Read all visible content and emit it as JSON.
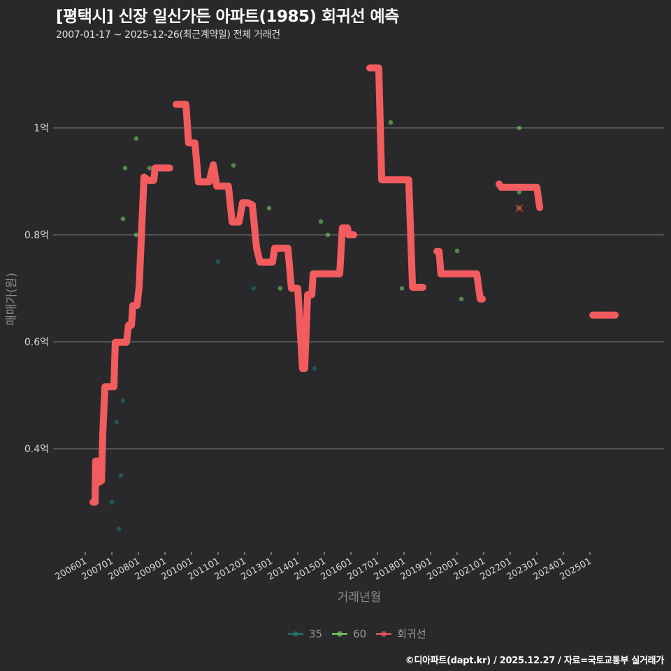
{
  "header": {
    "title": "[평택시] 신장 일신가든 아파트(1985) 회귀선 예측",
    "subtitle": "2007-01-17 ~ 2025-12-26(최근계약일) 전체 거래건"
  },
  "footer": {
    "credit": "©디아파트(dapt.kr) / 2025.12.27 / 자료=국토교통부 실거래가"
  },
  "legend": [
    {
      "label": "35",
      "color": "#1f7a72"
    },
    {
      "label": "60",
      "color": "#7bd36a"
    },
    {
      "label": "회귀선",
      "color": "#f25c5f"
    }
  ],
  "chart_data": {
    "type": "line",
    "title": "[평택시] 신장 일신가든 아파트(1985) 회귀선 예측",
    "subtitle": "2007-01-17 ~ 2025-12-26(최근계약일) 전체 거래건",
    "xlabel": "거래년월",
    "ylabel": "매매가(원)",
    "x_ticks": [
      "200601",
      "200701",
      "200801",
      "200901",
      "201001",
      "201101",
      "201201",
      "201301",
      "201401",
      "201501",
      "201601",
      "201701",
      "201801",
      "201901",
      "202001",
      "202101",
      "202201",
      "202301",
      "202401",
      "202501"
    ],
    "y_ticks": [
      {
        "value": 0.4,
        "label": "0.4억"
      },
      {
        "value": 0.6,
        "label": "0.6억"
      },
      {
        "value": 0.8,
        "label": "0.8억"
      },
      {
        "value": 1.0,
        "label": "1억"
      }
    ],
    "ylim": [
      0.21,
      1.13
    ],
    "xlim": [
      2005.6,
      2026.3
    ],
    "grid": "horizontal",
    "legend_position": "bottom",
    "unit": "억원",
    "series": [
      {
        "name": "35",
        "kind": "scatter",
        "color": "#1f7a72",
        "points": [
          {
            "x": 2007.42,
            "y": 0.49
          },
          {
            "x": 2007.18,
            "y": 0.45
          },
          {
            "x": 2007.34,
            "y": 0.35
          },
          {
            "x": 2007.0,
            "y": 0.3
          },
          {
            "x": 2007.26,
            "y": 0.25
          },
          {
            "x": 2011.0,
            "y": 0.75
          },
          {
            "x": 2012.34,
            "y": 0.7
          },
          {
            "x": 2014.63,
            "y": 0.55
          }
        ]
      },
      {
        "name": "60",
        "kind": "scatter",
        "color": "#7bd36a",
        "points": [
          {
            "x": 2007.92,
            "y": 0.98
          },
          {
            "x": 2007.5,
            "y": 0.925
          },
          {
            "x": 2008.42,
            "y": 0.925
          },
          {
            "x": 2007.42,
            "y": 0.83
          },
          {
            "x": 2007.92,
            "y": 0.8
          },
          {
            "x": 2011.58,
            "y": 0.93
          },
          {
            "x": 2012.92,
            "y": 0.85
          },
          {
            "x": 2013.34,
            "y": 0.7
          },
          {
            "x": 2014.87,
            "y": 0.825
          },
          {
            "x": 2015.13,
            "y": 0.8
          },
          {
            "x": 2017.5,
            "y": 1.01
          },
          {
            "x": 2017.92,
            "y": 0.7
          },
          {
            "x": 2020.0,
            "y": 0.77
          },
          {
            "x": 2020.16,
            "y": 0.68
          },
          {
            "x": 2022.34,
            "y": 1.0
          },
          {
            "x": 2022.34,
            "y": 0.88
          },
          {
            "x": 2022.34,
            "y": 0.85,
            "cancelled": true
          }
        ]
      },
      {
        "name": "회귀선",
        "kind": "line",
        "color": "#f25c5f",
        "segments": [
          [
            [
              2006.29,
              0.3
            ],
            [
              2006.37,
              0.3
            ],
            [
              2006.39,
              0.377
            ],
            [
              2006.5,
              0.377
            ],
            [
              2006.5,
              0.337
            ],
            [
              2006.61,
              0.34
            ],
            [
              2006.66,
              0.429
            ],
            [
              2006.74,
              0.516
            ],
            [
              2007.08,
              0.516
            ],
            [
              2007.13,
              0.599
            ],
            [
              2007.55,
              0.599
            ],
            [
              2007.63,
              0.631
            ],
            [
              2007.74,
              0.631
            ],
            [
              2007.79,
              0.668
            ],
            [
              2007.95,
              0.668
            ],
            [
              2008.03,
              0.703
            ],
            [
              2008.21,
              0.908
            ],
            [
              2008.39,
              0.902
            ],
            [
              2008.58,
              0.902
            ],
            [
              2008.63,
              0.925
            ],
            [
              2009.18,
              0.925
            ]
          ],
          [
            [
              2009.42,
              1.044
            ],
            [
              2009.79,
              1.044
            ],
            [
              2009.89,
              0.972
            ],
            [
              2010.13,
              0.972
            ],
            [
              2010.26,
              0.899
            ],
            [
              2010.66,
              0.899
            ],
            [
              2010.82,
              0.931
            ],
            [
              2010.95,
              0.891
            ],
            [
              2011.39,
              0.891
            ],
            [
              2011.53,
              0.824
            ],
            [
              2011.79,
              0.824
            ],
            [
              2011.92,
              0.86
            ],
            [
              2012.11,
              0.86
            ],
            [
              2012.29,
              0.856
            ],
            [
              2012.45,
              0.775
            ],
            [
              2012.58,
              0.749
            ],
            [
              2013.05,
              0.749
            ],
            [
              2013.13,
              0.775
            ],
            [
              2013.63,
              0.775
            ],
            [
              2013.76,
              0.7
            ],
            [
              2014.0,
              0.7
            ],
            [
              2014.18,
              0.55
            ],
            [
              2014.26,
              0.55
            ],
            [
              2014.37,
              0.688
            ],
            [
              2014.53,
              0.688
            ],
            [
              2014.58,
              0.727
            ],
            [
              2015.58,
              0.727
            ],
            [
              2015.68,
              0.813
            ],
            [
              2015.87,
              0.813
            ],
            [
              2015.92,
              0.8
            ],
            [
              2016.11,
              0.8
            ]
          ],
          [
            [
              2016.71,
              1.112
            ],
            [
              2017.05,
              1.112
            ],
            [
              2017.16,
              0.903
            ],
            [
              2018.18,
              0.903
            ],
            [
              2018.32,
              0.702
            ],
            [
              2018.71,
              0.702
            ]
          ],
          [
            [
              2019.24,
              0.769
            ],
            [
              2019.32,
              0.769
            ],
            [
              2019.39,
              0.727
            ],
            [
              2020.74,
              0.727
            ],
            [
              2020.87,
              0.68
            ],
            [
              2020.95,
              0.68
            ]
          ],
          [
            [
              2021.58,
              0.895
            ],
            [
              2021.66,
              0.889
            ],
            [
              2023.0,
              0.889
            ],
            [
              2023.11,
              0.851
            ]
          ],
          [
            [
              2025.11,
              0.65
            ],
            [
              2025.95,
              0.65
            ]
          ]
        ]
      }
    ]
  }
}
